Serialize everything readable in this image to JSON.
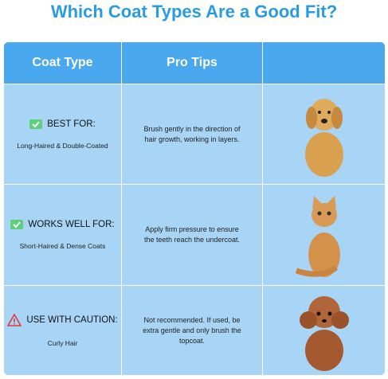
{
  "header": {
    "title": "Which Coat Types Are a Good Fit?"
  },
  "table": {
    "columns": [
      "Coat Type",
      "Pro Tips"
    ],
    "rows": [
      {
        "label": "BEST FOR:",
        "coat": "Long-Haired & Double-Coated",
        "tip": "Brush gently in the direction of hair growth, working in layers."
      },
      {
        "label": "WORKS WELL FOR:",
        "coat": "Short-Haired & Dense Coats",
        "tip": "Apply firm pressure to ensure the teeth reach the undercoat."
      },
      {
        "label": "USE WITH CAUTION:",
        "coat": "Curly Hair",
        "tip": "Not recommended. If used, be extra gentle and only brush the topcoat."
      }
    ]
  }
}
